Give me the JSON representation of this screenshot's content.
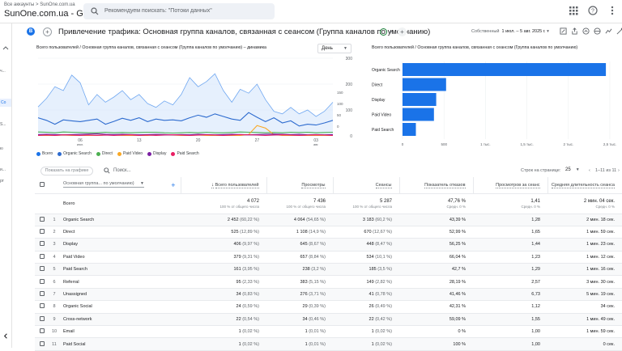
{
  "header": {
    "account_path": "Все аккаунты > SunOne.com.ua",
    "property_name": "SunOne.com.ua - GA4",
    "search_placeholder": "Рекомендуем поискать: \"Потоки данных\"",
    "icons": [
      "apps-grid-icon",
      "help-icon",
      "more-vert-icon",
      "avatar"
    ]
  },
  "leftrail": {
    "items": [
      "ч...",
      "Со",
      "S...",
      "ю",
      "и...",
      "рт"
    ]
  },
  "report": {
    "badge": "B",
    "title": "Привлечение трафика: Основная группа каналов, связанная с сеансом (Группа каналов по умолчанию)",
    "date_label": "Собственный",
    "date_range": "1 июл. – 5 авг. 2025 г."
  },
  "line_chart": {
    "title": "Всего пользователей / Основная группа каналов, связанная с сеансом (Группа каналов по умолчанию) – динамика",
    "granularity": "День",
    "legend": [
      {
        "name": "Всего",
        "color": "#1a73e8"
      },
      {
        "name": "Organic Search",
        "color": "#2d6bcf"
      },
      {
        "name": "Direct",
        "color": "#4caf50"
      },
      {
        "name": "Paid Video",
        "color": "#f9a825"
      },
      {
        "name": "Display",
        "color": "#7b1fa2"
      },
      {
        "name": "Paid Search",
        "color": "#e91e63"
      }
    ]
  },
  "bar_chart": {
    "title": "Всего пользователей / Основная группа каналов, связанная с сеансом (Группа каналов по умолчанию)"
  },
  "chart_data": [
    {
      "type": "line",
      "x_tick_labels": [
        "06\nиюл.",
        "13",
        "20",
        "27",
        "03\nавг."
      ],
      "y_tick_labels": [
        "300",
        "200",
        "100",
        "0"
      ],
      "ylim": [
        0,
        300
      ],
      "y2_tick_labels": [
        "0",
        "50",
        "100",
        "150"
      ],
      "grid": true,
      "series": [
        {
          "name": "Всего",
          "color": "#1a73e8",
          "values": [
            112,
            145,
            190,
            175,
            235,
            205,
            120,
            160,
            130,
            150,
            175,
            140,
            160,
            125,
            110,
            135,
            120,
            160,
            225,
            190,
            210,
            240,
            175,
            130,
            180,
            165,
            200,
            140,
            95,
            85,
            110,
            85,
            100,
            75,
            95,
            130
          ]
        },
        {
          "name": "Organic Search",
          "color": "#2d6bcf",
          "values": [
            70,
            60,
            45,
            62,
            58,
            55,
            60,
            65,
            45,
            56,
            68,
            60,
            70,
            55,
            65,
            60,
            62,
            58,
            70,
            80,
            72,
            85,
            75,
            65,
            60,
            90,
            72,
            55,
            70,
            50,
            58,
            38,
            45,
            42,
            50,
            60
          ]
        },
        {
          "name": "Direct",
          "color": "#4caf50",
          "values": [
            15,
            14,
            12,
            15,
            14,
            13,
            12,
            12,
            14,
            12,
            13,
            12,
            13,
            14,
            14,
            12,
            11,
            12,
            13,
            12,
            14,
            12,
            12,
            13,
            15,
            14,
            13,
            12,
            13,
            12,
            14,
            13,
            14,
            12,
            13,
            14
          ]
        },
        {
          "name": "Paid Video",
          "color": "#f9a825",
          "values": [
            2,
            2,
            2,
            3,
            2,
            2,
            2,
            2,
            3,
            3,
            2,
            2,
            2,
            2,
            4,
            5,
            3,
            2,
            2,
            3,
            2,
            2,
            2,
            2,
            2,
            5,
            40,
            30,
            5,
            2,
            2,
            2,
            2,
            2,
            2,
            2
          ]
        },
        {
          "name": "Display",
          "color": "#7b1fa2",
          "values": [
            5,
            6,
            5,
            4,
            5,
            6,
            7,
            8,
            6,
            5,
            6,
            5,
            4,
            5,
            6,
            5,
            4,
            5,
            4,
            6,
            5,
            4,
            5,
            6,
            5,
            4,
            5,
            6,
            7,
            6,
            5,
            6,
            4,
            5,
            4,
            5
          ]
        },
        {
          "name": "Paid Search",
          "color": "#e91e63",
          "values": [
            2,
            3,
            2,
            4,
            3,
            2,
            3,
            2,
            3,
            2,
            3,
            4,
            2,
            3,
            2,
            3,
            4,
            3,
            2,
            3,
            4,
            3,
            2,
            3,
            5,
            4,
            3,
            2,
            3,
            4,
            3,
            2,
            3,
            4,
            3,
            2
          ]
        }
      ]
    },
    {
      "type": "bar",
      "orientation": "horizontal",
      "categories": [
        "Organic Search",
        "Direct",
        "Display",
        "Paid Video",
        "Paid Search"
      ],
      "values": [
        2452,
        525,
        406,
        379,
        161
      ],
      "x_tick_labels": [
        "0",
        "500",
        "1 тыс.",
        "1,5 тыс.",
        "2 тыс.",
        "2,5 тыс."
      ],
      "xlim": [
        0,
        2500
      ],
      "color": "#1a73e8"
    }
  ],
  "table_toolbar": {
    "compare_label": "Показать на графике",
    "search_placeholder": "Поиск...",
    "rows_per_page_label": "Строк на странице:",
    "rows_per_page": "25",
    "pager_range": "1–11 из 11"
  },
  "table": {
    "dimension_label": "Основная группа... по умолчанию)",
    "columns": [
      "Всего пользователей",
      "Просмотры",
      "Сеансы",
      "Показатель отказов",
      "Просмотров за сеанс",
      "Средняя длительность сеанса"
    ],
    "total": {
      "label": "Всего",
      "values": [
        "4 072",
        "7 436",
        "5 287",
        "47,76 %",
        "1,41",
        "2 мин. 04 сек."
      ],
      "subs": [
        "100 % от общего числа",
        "100 % от общего числа",
        "100 % от общего числа",
        "Средн. 0 %",
        "Средн. 0 %",
        "Средн. 0 %"
      ]
    },
    "rows": [
      {
        "idx": "1",
        "channel": "Organic Search",
        "users": "2 452",
        "users_pct": "(60,22 %)",
        "views": "4 064",
        "views_pct": "(54,65 %)",
        "sessions": "3 183",
        "sessions_pct": "(60,2 %)",
        "bounce": "43,39 %",
        "vps": "1,28",
        "dur": "2 мин. 18 сек."
      },
      {
        "idx": "2",
        "channel": "Direct",
        "users": "525",
        "users_pct": "(12,89 %)",
        "views": "1 108",
        "views_pct": "(14,9 %)",
        "sessions": "670",
        "sessions_pct": "(12,67 %)",
        "bounce": "52,99 %",
        "vps": "1,65",
        "dur": "1 мин. 59 сек."
      },
      {
        "idx": "3",
        "channel": "Display",
        "users": "406",
        "users_pct": "(9,97 %)",
        "views": "645",
        "views_pct": "(8,67 %)",
        "sessions": "448",
        "sessions_pct": "(8,47 %)",
        "bounce": "56,25 %",
        "vps": "1,44",
        "dur": "1 мин. 23 сек."
      },
      {
        "idx": "4",
        "channel": "Paid Video",
        "users": "379",
        "users_pct": "(9,31 %)",
        "views": "657",
        "views_pct": "(8,84 %)",
        "sessions": "534",
        "sessions_pct": "(10,1 %)",
        "bounce": "66,04 %",
        "vps": "1,23",
        "dur": "1 мин. 12 сек."
      },
      {
        "idx": "5",
        "channel": "Paid Search",
        "users": "161",
        "users_pct": "(3,95 %)",
        "views": "238",
        "views_pct": "(3,2 %)",
        "sessions": "185",
        "sessions_pct": "(3,5 %)",
        "bounce": "42,7 %",
        "vps": "1,29",
        "dur": "1 мин. 16 сек."
      },
      {
        "idx": "6",
        "channel": "Referral",
        "users": "95",
        "users_pct": "(2,33 %)",
        "views": "383",
        "views_pct": "(5,15 %)",
        "sessions": "149",
        "sessions_pct": "(2,82 %)",
        "bounce": "28,19 %",
        "vps": "2,57",
        "dur": "3 мин. 30 сек."
      },
      {
        "idx": "7",
        "channel": "Unassigned",
        "users": "34",
        "users_pct": "(0,83 %)",
        "views": "276",
        "views_pct": "(3,71 %)",
        "sessions": "41",
        "sessions_pct": "(0,78 %)",
        "bounce": "41,46 %",
        "vps": "6,73",
        "dur": "5 мин. 19 сек."
      },
      {
        "idx": "8",
        "channel": "Organic Social",
        "users": "24",
        "users_pct": "(0,59 %)",
        "views": "29",
        "views_pct": "(0,39 %)",
        "sessions": "26",
        "sessions_pct": "(0,49 %)",
        "bounce": "42,31 %",
        "vps": "1,12",
        "dur": "34 сек."
      },
      {
        "idx": "9",
        "channel": "Cross-network",
        "users": "22",
        "users_pct": "(0,54 %)",
        "views": "34",
        "views_pct": "(0,46 %)",
        "sessions": "22",
        "sessions_pct": "(0,42 %)",
        "bounce": "59,09 %",
        "vps": "1,55",
        "dur": "1 мин. 49 сек."
      },
      {
        "idx": "10",
        "channel": "Email",
        "users": "1",
        "users_pct": "(0,02 %)",
        "views": "1",
        "views_pct": "(0,01 %)",
        "sessions": "1",
        "sessions_pct": "(0,02 %)",
        "bounce": "0 %",
        "vps": "1,00",
        "dur": "1 мин. 59 сек."
      },
      {
        "idx": "11",
        "channel": "Paid Social",
        "users": "1",
        "users_pct": "(0,02 %)",
        "views": "1",
        "views_pct": "(0,01 %)",
        "sessions": "1",
        "sessions_pct": "(0,02 %)",
        "bounce": "100 %",
        "vps": "1,00",
        "dur": "0 сек."
      }
    ]
  }
}
